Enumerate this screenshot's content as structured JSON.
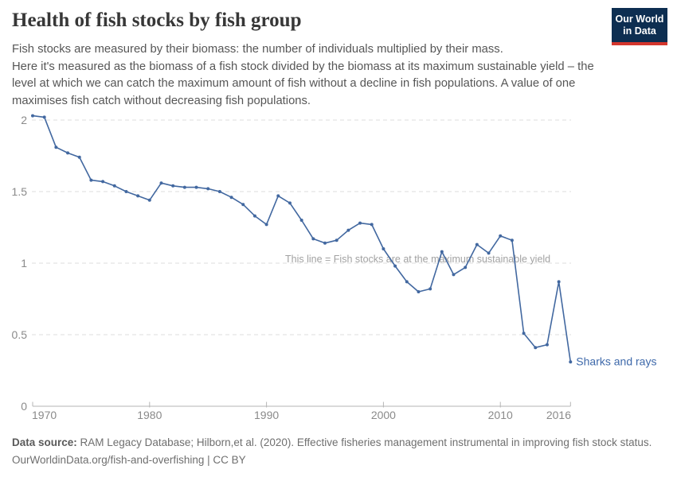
{
  "header": {
    "title": "Health of fish stocks by fish group",
    "subtitle_lines": [
      "Fish stocks are measured by their biomass: the number of individuals multiplied by their mass.",
      "Here it's measured as the biomass of a fish stock divided by the biomass at its maximum sustainable yield – the",
      "level at which we can catch the maximum amount of fish without a decline in fish populations. A value of one",
      "maximises fish catch without decreasing fish populations."
    ],
    "logo_lines": [
      "Our World",
      "in Data"
    ]
  },
  "chart_data": {
    "type": "line",
    "title": "Health of fish stocks by fish group",
    "xlabel": "",
    "ylabel": "",
    "xlim": [
      1970,
      2016
    ],
    "ylim": [
      0,
      2.05
    ],
    "xticks": [
      1970,
      1980,
      1990,
      2000,
      2010,
      2016
    ],
    "yticks": [
      0,
      0.5,
      1,
      1.5,
      2
    ],
    "grid": "horizontal-dashed",
    "annotation": "This line = Fish stocks are at the maximum sustainable yield",
    "end_label": "Sharks and rays",
    "series": [
      {
        "name": "Sharks and rays",
        "color": "#4268a0",
        "x": [
          1970,
          1971,
          1972,
          1973,
          1974,
          1975,
          1976,
          1977,
          1978,
          1979,
          1980,
          1981,
          1982,
          1983,
          1984,
          1985,
          1986,
          1987,
          1988,
          1989,
          1990,
          1991,
          1992,
          1993,
          1994,
          1995,
          1996,
          1997,
          1998,
          1999,
          2000,
          2001,
          2002,
          2003,
          2004,
          2005,
          2006,
          2007,
          2008,
          2009,
          2010,
          2011,
          2012,
          2013,
          2014,
          2015,
          2016
        ],
        "values": [
          2.03,
          2.02,
          1.81,
          1.77,
          1.74,
          1.58,
          1.57,
          1.54,
          1.5,
          1.47,
          1.44,
          1.56,
          1.54,
          1.53,
          1.53,
          1.52,
          1.5,
          1.46,
          1.41,
          1.33,
          1.27,
          1.47,
          1.42,
          1.3,
          1.17,
          1.14,
          1.16,
          1.23,
          1.28,
          1.27,
          1.1,
          0.98,
          0.87,
          0.8,
          0.82,
          1.08,
          0.92,
          0.97,
          1.13,
          1.07,
          1.19,
          1.16,
          0.51,
          0.41,
          0.43,
          0.87,
          0.31
        ]
      }
    ]
  },
  "footer": {
    "source_label": "Data source:",
    "source_text": " RAM Legacy Database; Hilborn,et al. (2020). Effective fisheries management instrumental in improving fish stock status.",
    "line2": "OurWorldinData.org/fish-and-overfishing | CC BY"
  },
  "colors": {
    "line": "#4268a0",
    "series_label": "#3e69aa",
    "grid": "#dedede",
    "axis": "#b5b5b5",
    "axis_text": "#8a8a8a",
    "annotation": "#a2a2a2",
    "logo_bg": "#0d2e51",
    "logo_red": "#d4362d"
  }
}
